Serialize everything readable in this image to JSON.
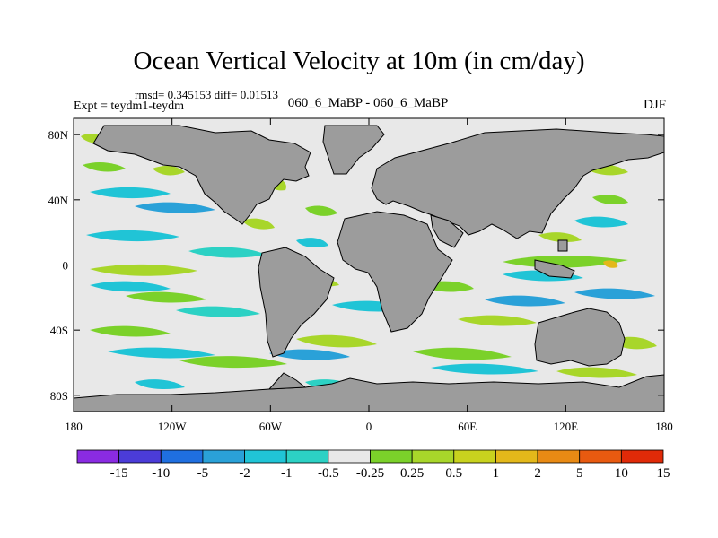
{
  "title": "Ocean Vertical Velocity at 10m (in cm/day)",
  "stats": "rmsd= 0.345153 diff= 0.01513",
  "expt": "Expt = teydm1-teydm",
  "center_label": "060_6_MaBP - 060_6_MaBP",
  "season": "DJF",
  "map": {
    "lat_ticks": [
      "80N",
      "40N",
      "0",
      "40S",
      "80S"
    ],
    "lat_values": [
      80,
      40,
      0,
      -40,
      -80
    ],
    "lon_ticks": [
      "180",
      "120W",
      "60W",
      "0",
      "60E",
      "120E",
      "180"
    ],
    "lon_values": [
      -180,
      -120,
      -60,
      0,
      60,
      120,
      180
    ]
  },
  "colorbar": {
    "labels": [
      "-15",
      "-10",
      "-5",
      "-2",
      "-1",
      "-0.5",
      "-0.25",
      "0.25",
      "0.5",
      "1",
      "2",
      "5",
      "10",
      "15"
    ],
    "colors": [
      "#8a2be2",
      "#4b3cd8",
      "#1f6fe0",
      "#2aa1d8",
      "#20c4d6",
      "#2cd1c4",
      "#e8e8e8",
      "#7bd12a",
      "#a8d62a",
      "#c8d21e",
      "#e3b81a",
      "#e88a14",
      "#e85a10",
      "#e02a08"
    ]
  },
  "land_color": "#9c9c9c",
  "ocean_color": "#e8e8e8"
}
